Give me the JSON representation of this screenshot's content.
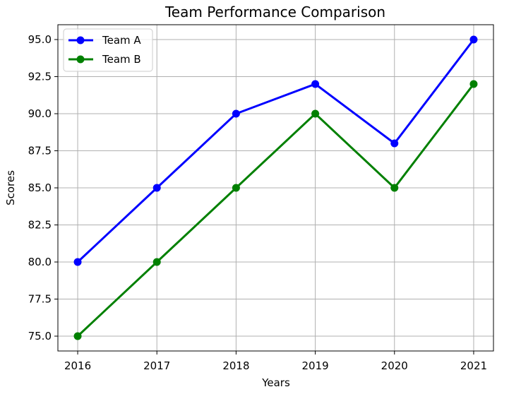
{
  "chart_data": {
    "type": "line",
    "title": "Team Performance Comparison",
    "xlabel": "Years",
    "ylabel": "Scores",
    "x": [
      2016,
      2017,
      2018,
      2019,
      2020,
      2021
    ],
    "xticks": [
      "2016",
      "2017",
      "2018",
      "2019",
      "2020",
      "2021"
    ],
    "yticks": [
      "75.0",
      "77.5",
      "80.0",
      "82.5",
      "85.0",
      "87.5",
      "90.0",
      "92.5",
      "95.0"
    ],
    "ylim": [
      74,
      96
    ],
    "xlim": [
      2015.75,
      2021.25
    ],
    "grid": true,
    "legend_position": "upper left",
    "series": [
      {
        "name": "Team A",
        "color": "#0000ff",
        "marker": "circle",
        "values": [
          80,
          85,
          90,
          92,
          88,
          95
        ]
      },
      {
        "name": "Team B",
        "color": "#008000",
        "marker": "circle",
        "values": [
          75,
          80,
          85,
          90,
          85,
          92
        ]
      }
    ]
  }
}
